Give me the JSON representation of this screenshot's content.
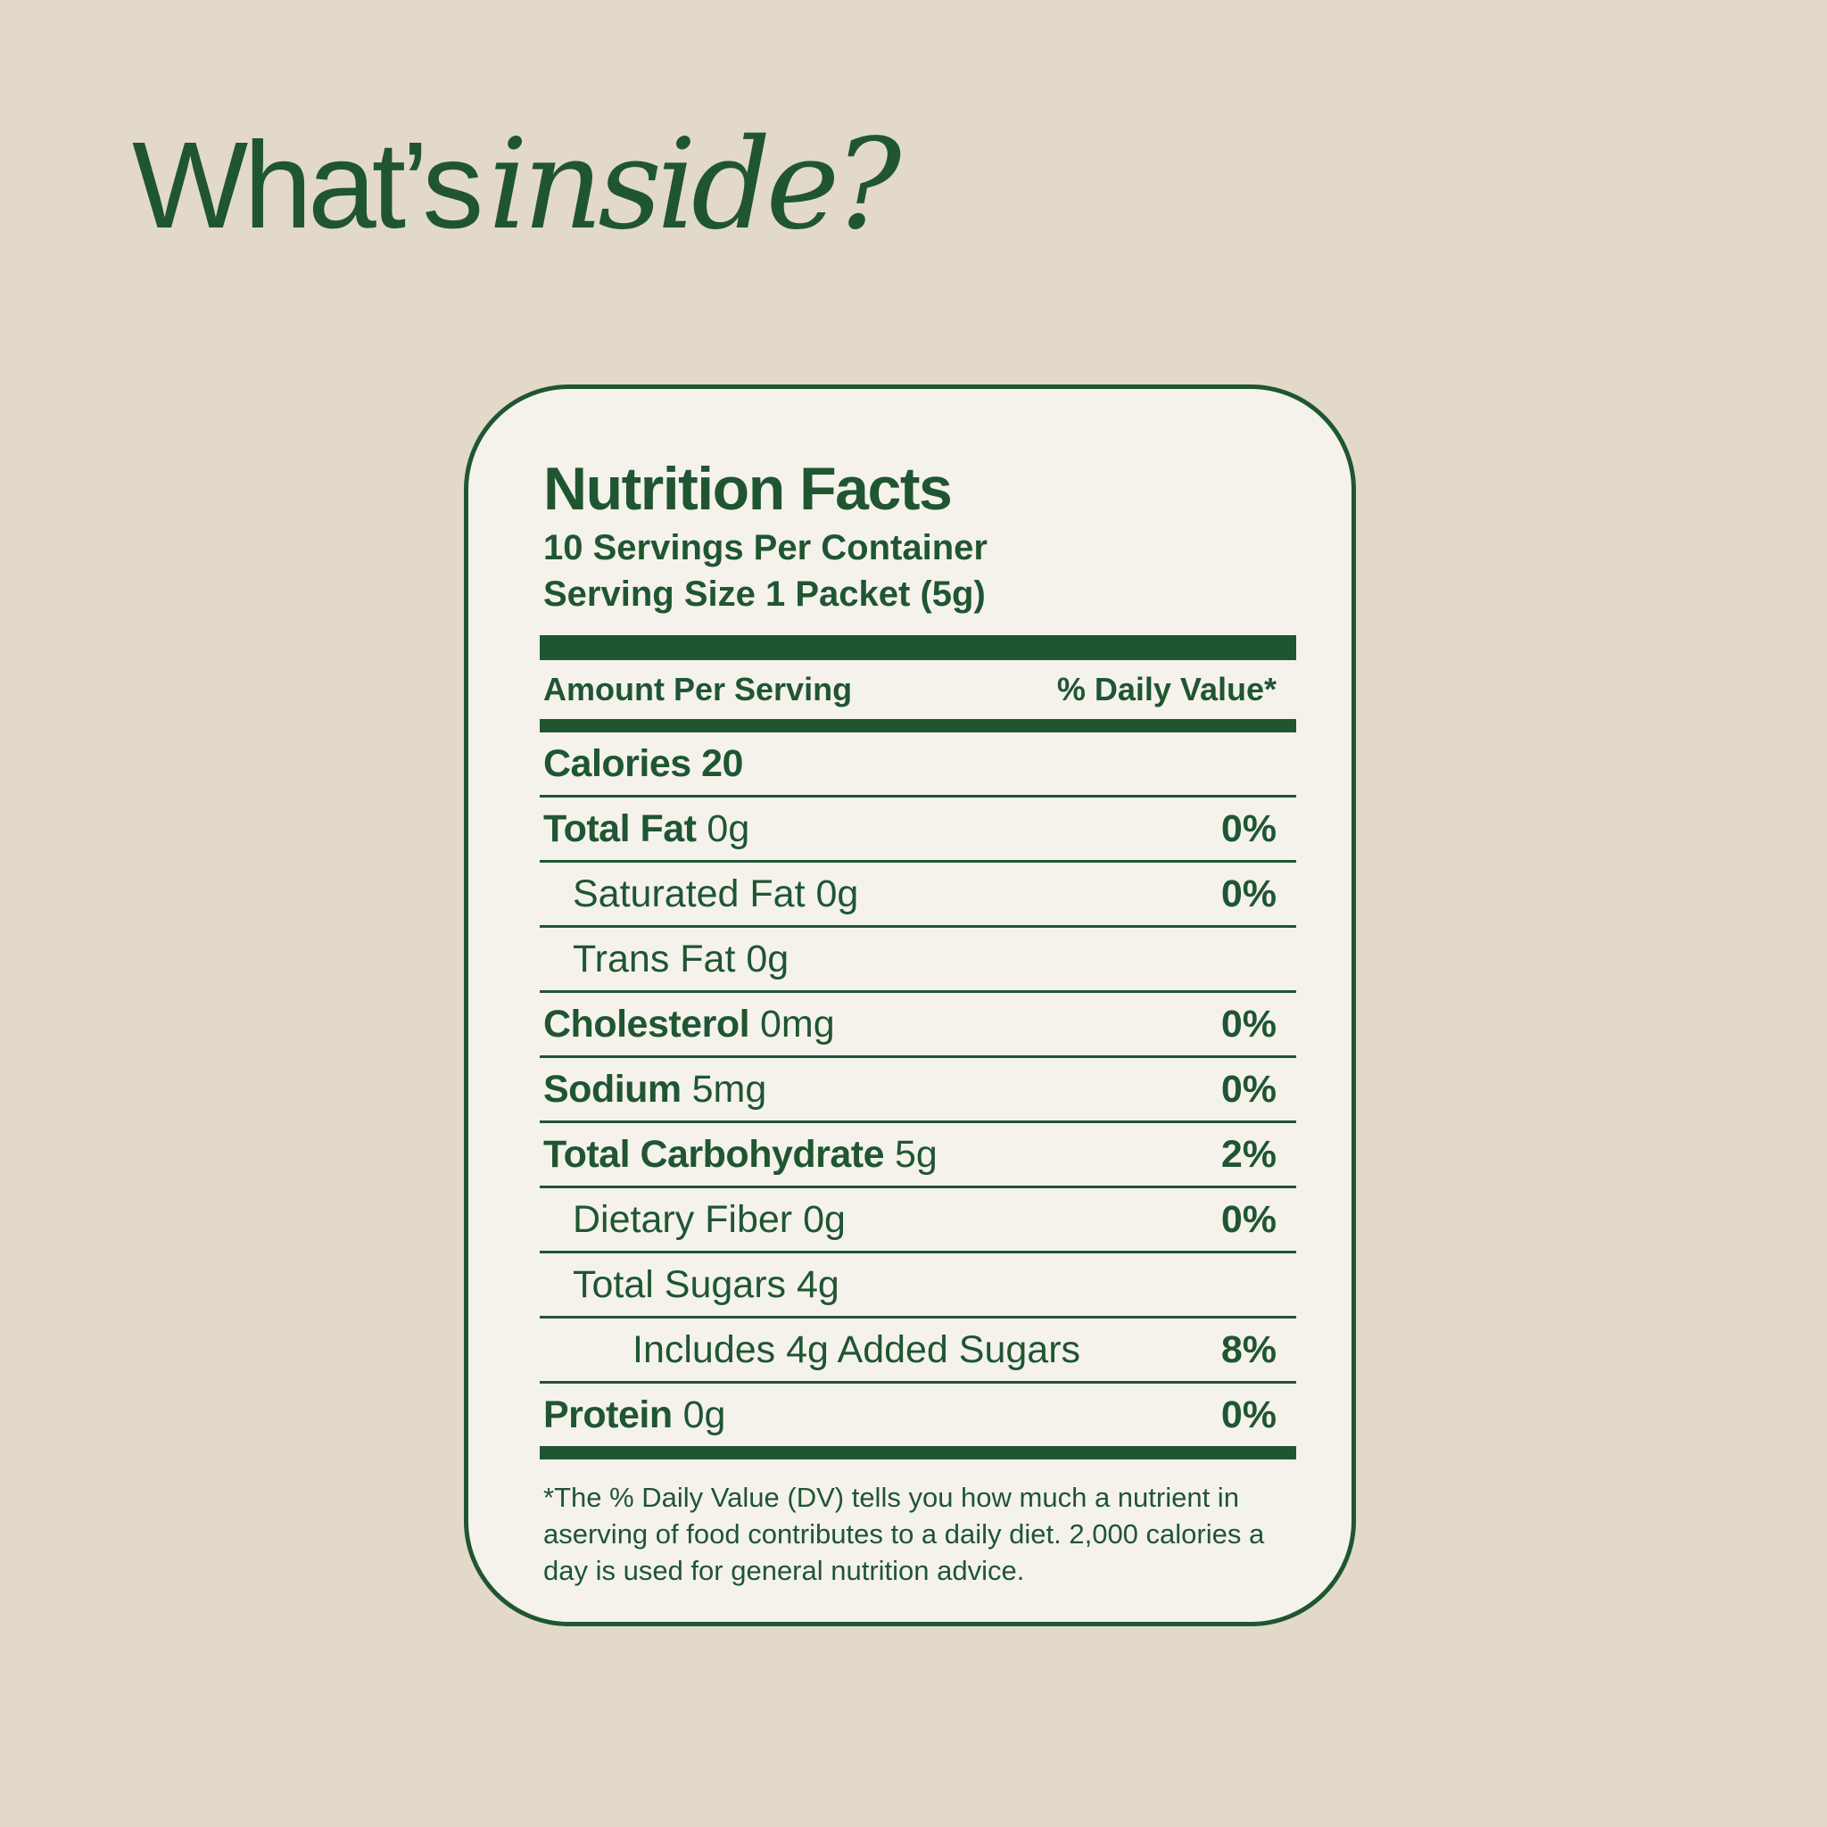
{
  "headline": {
    "plain": "What’s",
    "italic": "inside?"
  },
  "label": {
    "title": "Nutrition Facts",
    "servings": "10 Servings Per Container",
    "serving_size": "Serving Size 1 Packet (5g)",
    "amount_header": "Amount Per Serving",
    "dv_header": "% Daily Value*",
    "calories": "Calories 20",
    "rows": [
      {
        "name": "Total Fat",
        "amount": "0g",
        "dv": "0%"
      },
      {
        "name": "Saturated Fat",
        "amount": "0g",
        "dv": "0%"
      },
      {
        "name": "Trans Fat",
        "amount": "0g",
        "dv": ""
      },
      {
        "name": "Cholesterol",
        "amount": "0mg",
        "dv": "0%"
      },
      {
        "name": "Sodium",
        "amount": "5mg",
        "dv": "0%"
      },
      {
        "name": "Total Carbohydrate",
        "amount": "5g",
        "dv": "2%"
      },
      {
        "name": "Dietary Fiber",
        "amount": "0g",
        "dv": "0%"
      },
      {
        "name": "Total Sugars",
        "amount": "4g",
        "dv": ""
      },
      {
        "name": "Includes 4g Added Sugars",
        "amount": "",
        "dv": "8%"
      },
      {
        "name": "Protein",
        "amount": "0g",
        "dv": "0%"
      }
    ],
    "footnote": "*The % Daily Value (DV) tells you how much a nutrient in aserving of food contributes to a daily diet. 2,000 calories a day is used for general nutrition advice."
  },
  "colors": {
    "background": "#e2d9c9",
    "card": "#f5f2ec",
    "ink": "#1f5631"
  }
}
